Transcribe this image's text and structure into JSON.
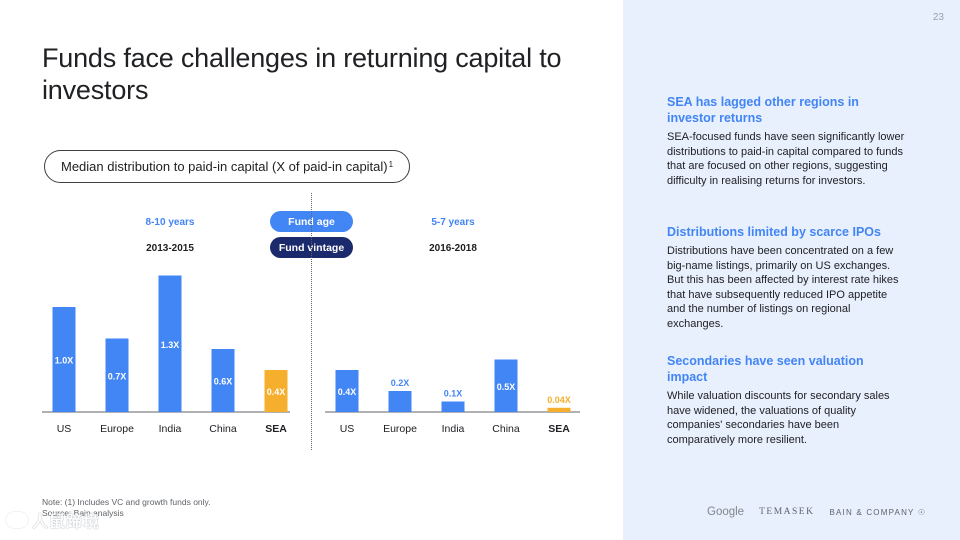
{
  "page_number": "23",
  "title": "Funds face challenges in returning capital to investors",
  "chart_label": "Median distribution to paid-in capital (X of paid-in capital)",
  "chart_label_sup": "1",
  "legend": {
    "fund_age": "Fund age",
    "fund_vintage": "Fund vintage"
  },
  "colors": {
    "primary_blue": "#4285f4",
    "navy": "#1a2a6c",
    "sea_highlight": "#f6ae2d",
    "panel_bg": "#e8f0fe"
  },
  "chart_data": {
    "type": "bar",
    "ylim": [
      0,
      1.4
    ],
    "groups": [
      {
        "age": "8-10 years",
        "vintage": "2013-2015",
        "categories": [
          "US",
          "Europe",
          "India",
          "China",
          "SEA"
        ],
        "values": [
          1.0,
          0.7,
          1.3,
          0.6,
          0.4
        ],
        "labels": [
          "1.0X",
          "0.7X",
          "1.3X",
          "0.6X",
          "0.4X"
        ],
        "highlight": "SEA"
      },
      {
        "age": "5-7 years",
        "vintage": "2016-2018",
        "categories": [
          "US",
          "Europe",
          "India",
          "China",
          "SEA"
        ],
        "values": [
          0.4,
          0.2,
          0.1,
          0.5,
          0.04
        ],
        "labels": [
          "0.4X",
          "0.2X",
          "0.1X",
          "0.5X",
          "0.04X"
        ],
        "highlight": "SEA"
      }
    ]
  },
  "side_blocks": [
    {
      "heading": "SEA has lagged other regions in investor returns",
      "body": "SEA-focused funds have seen significantly lower distributions to paid-in capital compared to funds that are focused on other regions, suggesting difficulty in realising returns for investors."
    },
    {
      "heading": "Distributions limited by scarce IPOs",
      "body": "Distributions have been concentrated on a few big-name listings, primarily on US exchanges. But this has been affected by interest rate hikes that have subsequently reduced IPO appetite and the number of listings on regional exchanges."
    },
    {
      "heading": "Secondaries have seen valuation impact",
      "body": "While valuation discounts for secondary sales have widened, the valuations of quality companies' secondaries have been comparatively more resilient."
    }
  ],
  "logos": {
    "google": "Google",
    "temasek": "TEMASEK",
    "bain": "BAIN & COMPANY"
  },
  "footnote": {
    "note": "Note: (1) Includes VC and growth funds only.",
    "source": "Source: Bain analysis"
  },
  "watermark": "人鼠蹄境"
}
